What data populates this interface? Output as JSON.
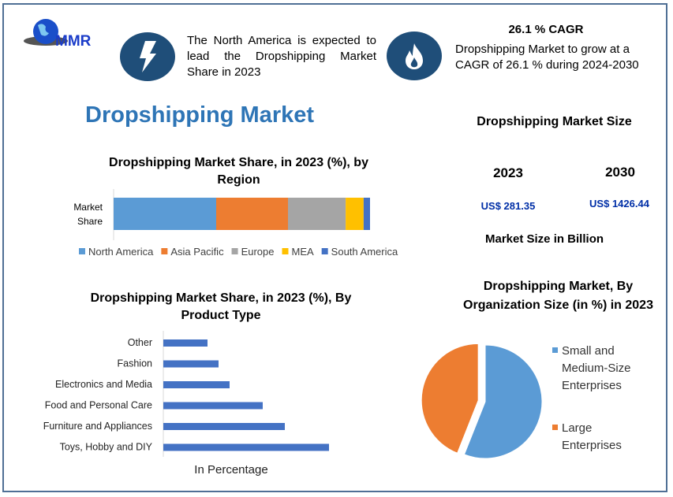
{
  "logo": {
    "text": "MMR"
  },
  "highlights": [
    {
      "icon": "lightning-icon",
      "text": "The North America is expected to lead the Dropshipping Market Share in 2023"
    },
    {
      "icon": "flame-icon",
      "title": "26.1 % CAGR",
      "text": "Dropshipping Market to grow at a CAGR of 26.1 % during 2024-2030"
    }
  ],
  "main_title": "Dropshipping Market",
  "market_size": {
    "title": "Dropshipping Market Size",
    "years": [
      "2023",
      "2030"
    ],
    "values": [
      "US$ 281.35",
      "US$ 1426.44"
    ],
    "unit": "Market Size in Billion",
    "value_color": "#002fa7"
  },
  "colors": {
    "accent": "#1f4e79",
    "title": "#2e75b6",
    "frame": "#4f6f95"
  },
  "chart_data": [
    {
      "type": "bar",
      "orientation": "horizontal-stacked",
      "title": "Dropshipping Market Share, in 2023 (%), by Region",
      "categories": [
        "Market Share"
      ],
      "series": [
        {
          "name": "North America",
          "values": [
            40
          ],
          "color": "#5b9bd5"
        },
        {
          "name": "Asia Pacific",
          "values": [
            28
          ],
          "color": "#ed7d31"
        },
        {
          "name": "Europe",
          "values": [
            22.5
          ],
          "color": "#a5a5a5"
        },
        {
          "name": "MEA",
          "values": [
            7
          ],
          "color": "#ffc000"
        },
        {
          "name": "South America",
          "values": [
            2.5
          ],
          "color": "#4472c4"
        }
      ],
      "legend": "bottom",
      "xlim": [
        0,
        100
      ]
    },
    {
      "type": "bar",
      "orientation": "horizontal",
      "title": "Dropshipping Market Share, in 2023 (%), By Product Type",
      "categories": [
        "Other",
        "Fashion",
        "Electronics and Media",
        "Food and Personal Care",
        "Furniture and Appliances",
        "Toys, Hobby and DIY"
      ],
      "values": [
        8,
        10,
        12,
        18,
        22,
        30
      ],
      "xlabel": "In Percentage",
      "color": "#4472c4",
      "xlim": [
        0,
        45
      ]
    },
    {
      "type": "pie",
      "title": "Dropshipping Market, By Organization Size (in %) in 2023",
      "categories": [
        "Small and Medium-Size Enterprises",
        "Large Enterprises"
      ],
      "values": [
        56,
        44
      ],
      "colors": [
        "#5b9bd5",
        "#ed7d31"
      ],
      "legend": "right"
    }
  ]
}
